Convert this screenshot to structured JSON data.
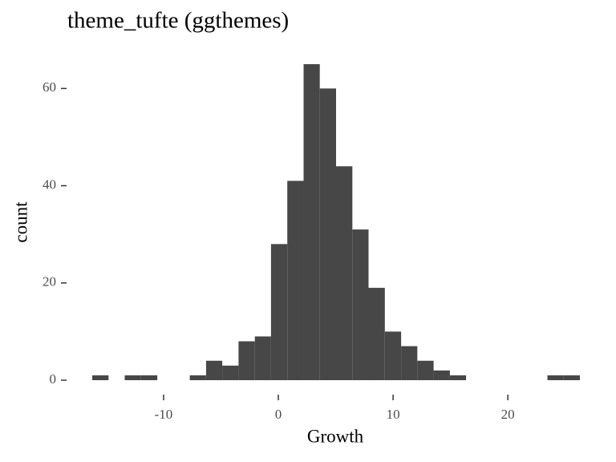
{
  "chart_data": {
    "type": "histogram",
    "title": "theme_tufte (ggthemes)",
    "x_label": "Growth",
    "y_label": "count",
    "bins": [
      -16.22,
      -14.8,
      -13.39,
      -11.97,
      -10.55,
      -9.14,
      -7.72,
      -6.3,
      -4.89,
      -3.47,
      -2.05,
      -0.64,
      0.78,
      2.2,
      3.61,
      5.03,
      6.45,
      7.86,
      9.28,
      10.7,
      12.11,
      13.53,
      14.95,
      16.36,
      17.78,
      19.2,
      20.61,
      22.03,
      23.45,
      24.86,
      26.28
    ],
    "values": [
      1,
      0,
      1,
      1,
      0,
      0,
      1,
      4,
      3,
      8,
      9,
      28,
      41,
      65,
      60,
      44,
      31,
      19,
      10,
      7,
      4,
      2,
      1,
      0,
      0,
      0,
      0,
      0,
      1,
      1
    ],
    "color": "#474747",
    "xlim": [
      -16.22,
      26.28
    ],
    "xticks": [
      -10,
      0,
      10,
      20
    ],
    "ylim": [
      0,
      65
    ],
    "yticks": [
      0,
      20,
      40,
      60
    ],
    "grid": false
  }
}
